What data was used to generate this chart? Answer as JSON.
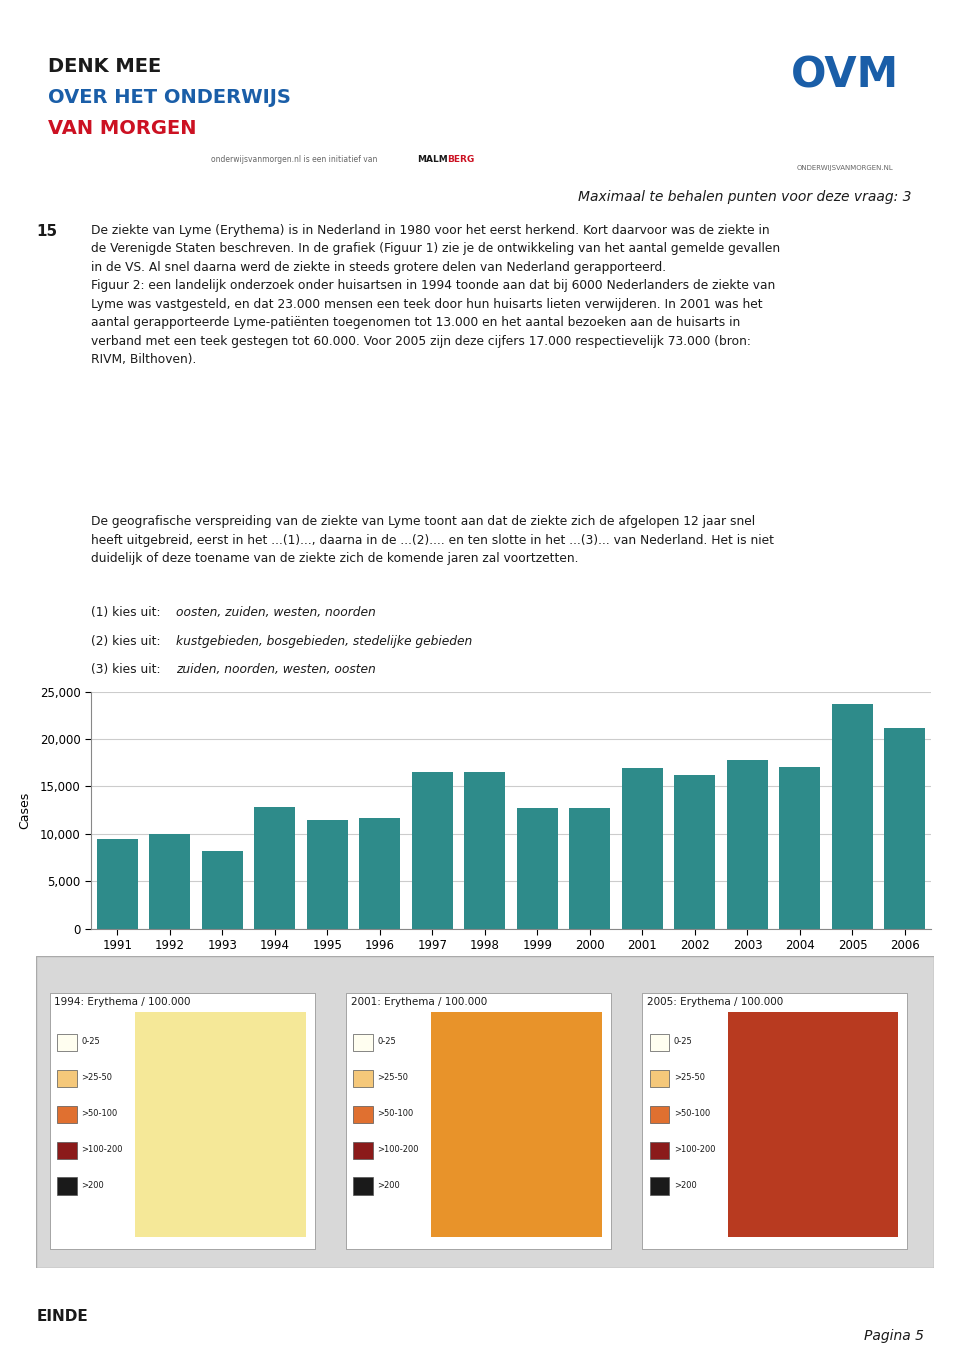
{
  "title_line": "Maximaal te behalen punten voor deze vraag: 3",
  "q_num": "15",
  "p1": "De ziekte van Lyme (Erythema) is in Nederland in 1980 voor het eerst herkend. Kort daarvoor was de ziekte in\nde Verenigde Staten beschreven. In de grafiek (Figuur 1) zie je de ontwikkeling van het aantal gemelde gevallen\nin de VS. Al snel daarna werd de ziekte in steeds grotere delen van Nederland gerapporteerd.\nFiguur 2: een landelijk onderzoek onder huisartsen in 1994 toonde aan dat bij 6000 Nederlanders de ziekte van\nLyme was vastgesteld, en dat 23.000 mensen een teek door hun huisarts lieten verwijderen. In 2001 was het\naantal gerapporteerde Lyme-patiënten toegenomen tot 13.000 en het aantal bezoeken aan de huisarts in\nverband met een teek gestegen tot 60.000. Voor 2005 zijn deze cijfers 17.000 respectievelijk 73.000 (bron:\nRIVM, Bilthoven).",
  "p3": "De geografische verspreiding van de ziekte van Lyme toont aan dat de ziekte zich de afgelopen 12 jaar snel\nheeft uitgebreid, eerst in het ...(1)..., daarna in de ...(2).... en ten slotte in het ...(3)... van Nederland. Het is niet\nduidelijk of deze toename van de ziekte zich de komende jaren zal voortzetten.",
  "kies1_pre": "(1) kies uit: ",
  "kies1_it": "oosten, zuiden, westen, noorden",
  "kies2_pre": "(2) kies uit: ",
  "kies2_it": "kustgebieden, bosgebieden, stedelijke gebieden",
  "kies3_pre": "(3) kies uit: ",
  "kies3_it": "zuiden, noorden, westen, oosten",
  "bar_years": [
    1991,
    1992,
    1993,
    1994,
    1995,
    1996,
    1997,
    1998,
    1999,
    2000,
    2001,
    2002,
    2003,
    2004,
    2005,
    2006
  ],
  "bar_values": [
    9500,
    10000,
    8200,
    12800,
    11500,
    11700,
    16500,
    16500,
    12700,
    12700,
    16900,
    16200,
    17800,
    17000,
    23700,
    21200
  ],
  "bar_color": "#2e8b8a",
  "ylabel": "Cases",
  "ylim": [
    0,
    25000
  ],
  "yticks": [
    0,
    5000,
    10000,
    15000,
    20000,
    25000
  ],
  "header_black": "#1a1a1a",
  "header_blue": "#1a5ea8",
  "header_red": "#cc1122",
  "bg_color": "#ffffff",
  "footer_text": "EINDE",
  "page_text": "Pagina 5",
  "logo_line1": "DENK MEE",
  "logo_line2": "OVER HET ONDERWIJS",
  "logo_line3": "VAN MORGEN",
  "map_titles": [
    "1994: Erythema / 100.000",
    "2001: Erythema / 100.000",
    "2005: Erythema / 100.000"
  ],
  "map_legend_labels": [
    "0-25",
    ">25-50",
    ">50-100",
    ">100-200",
    ">200"
  ],
  "map_legend_colors": [
    "#fffef0",
    "#f5c87a",
    "#e07030",
    "#8b1a1a",
    "#1a1a1a"
  ],
  "map_bg": "#d8d8d8"
}
